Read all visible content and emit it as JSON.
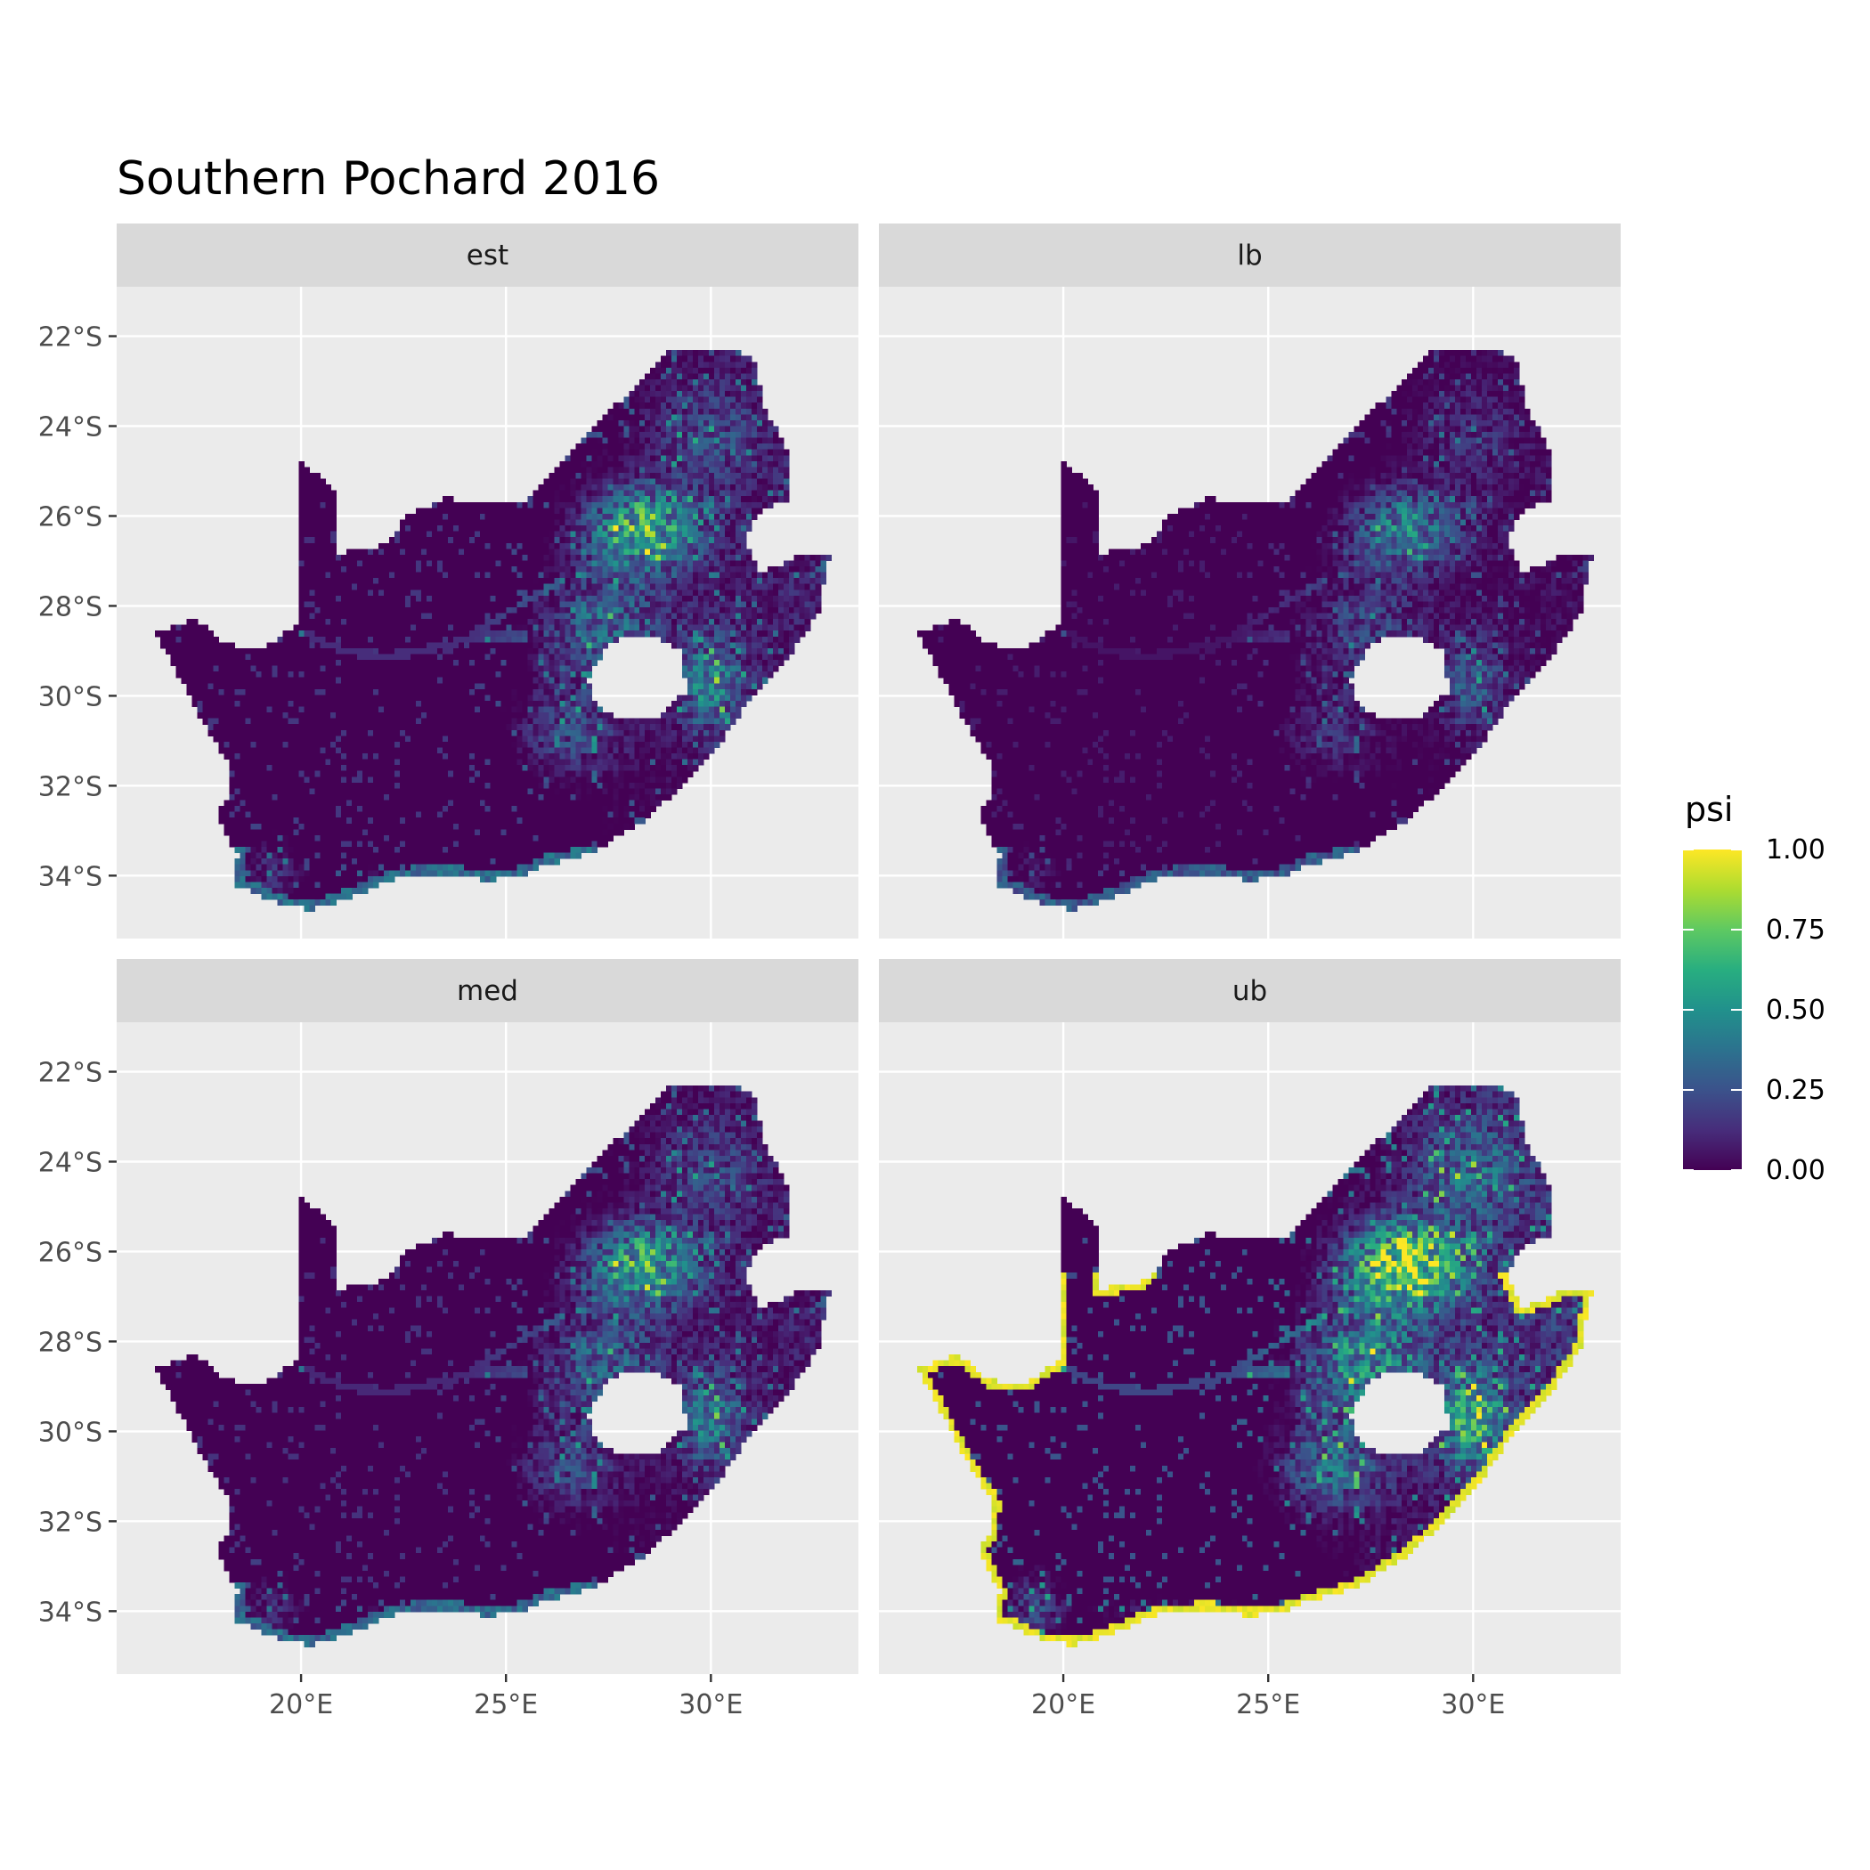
{
  "title": "Southern Pochard 2016",
  "facets": [
    {
      "label": "est",
      "intensity": 0.7,
      "coast_bright": false
    },
    {
      "label": "lb",
      "intensity": 0.5,
      "coast_bright": false
    },
    {
      "label": "med",
      "intensity": 0.66,
      "coast_bright": false
    },
    {
      "label": "ub",
      "intensity": 0.95,
      "coast_bright": true
    }
  ],
  "x_ticks": [
    "20°E",
    "25°E",
    "30°E"
  ],
  "y_ticks": [
    "22°S",
    "24°S",
    "26°S",
    "28°S",
    "30°S",
    "32°S",
    "34°S"
  ],
  "legend": {
    "title": "psi",
    "labels": [
      "1.00",
      "0.75",
      "0.50",
      "0.25",
      "0.00"
    ]
  },
  "colors": {
    "panel_bg": "#ebebeb",
    "grid": "#ffffff",
    "strip_bg": "#d9d9d9",
    "viridis": [
      "#440154",
      "#472d7b",
      "#3b528b",
      "#2c728e",
      "#21918c",
      "#28ae80",
      "#5ec962",
      "#addc30",
      "#fde725"
    ]
  },
  "chart_data": {
    "type": "heatmap",
    "title": "Southern Pochard 2016",
    "facets": [
      "est",
      "lb",
      "med",
      "ub"
    ],
    "x_ticks": [
      "20°E",
      "25°E",
      "30°E"
    ],
    "y_ticks": [
      "22°S",
      "24°S",
      "26°S",
      "28°S",
      "30°S",
      "32°S",
      "34°S"
    ],
    "xlim": [
      15.5,
      33.6
    ],
    "ylim": [
      -35.4,
      -20.9
    ],
    "fill_scale": {
      "name": "psi",
      "palette": "viridis",
      "limits": [
        0,
        1
      ],
      "breaks": [
        0,
        0.25,
        0.5,
        0.75,
        1
      ]
    },
    "grid": true,
    "legend_position": "right"
  }
}
